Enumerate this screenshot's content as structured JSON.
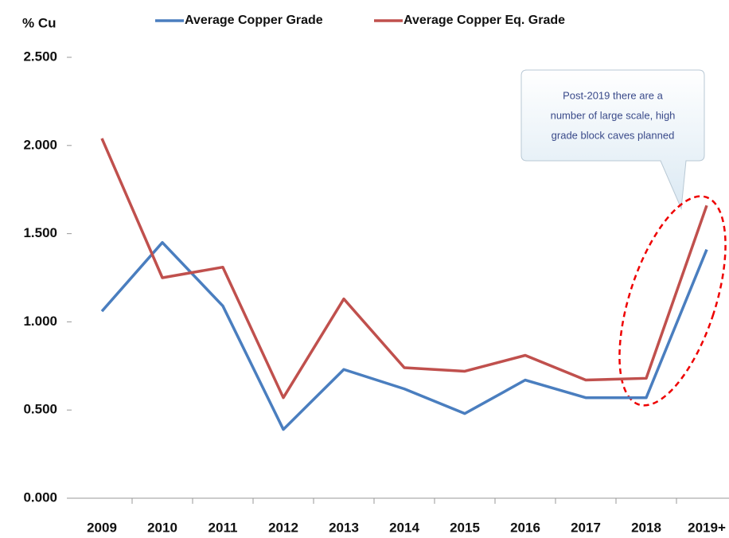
{
  "chart_data": {
    "type": "line",
    "y_label": "% Cu",
    "categories": [
      "2009",
      "2010",
      "2011",
      "2012",
      "2013",
      "2014",
      "2015",
      "2016",
      "2017",
      "2018",
      "2019+"
    ],
    "series": [
      {
        "name": "Average Copper Grade",
        "color": "#4a7ebf",
        "values": [
          1.06,
          1.45,
          1.09,
          0.39,
          0.73,
          0.62,
          0.48,
          0.67,
          0.57,
          0.57,
          1.41
        ]
      },
      {
        "name": "Average Copper Eq. Grade",
        "color": "#c0504d",
        "values": [
          2.04,
          1.25,
          1.31,
          0.57,
          1.13,
          0.74,
          0.72,
          0.81,
          0.67,
          0.68,
          1.66
        ]
      }
    ],
    "ylim": [
      0,
      2.5
    ],
    "yticks": [
      {
        "value": 0,
        "label": "0.000"
      },
      {
        "value": 0.5,
        "label": "0.500"
      },
      {
        "value": 1,
        "label": "1.000"
      },
      {
        "value": 1.5,
        "label": "1.500"
      },
      {
        "value": 2,
        "label": "2.000"
      },
      {
        "value": 2.5,
        "label": "2.500"
      }
    ],
    "grid": false,
    "legend": "top",
    "annotation": [
      "Post-2019 there are a",
      "number of large scale, high",
      "grade block caves planned"
    ]
  }
}
